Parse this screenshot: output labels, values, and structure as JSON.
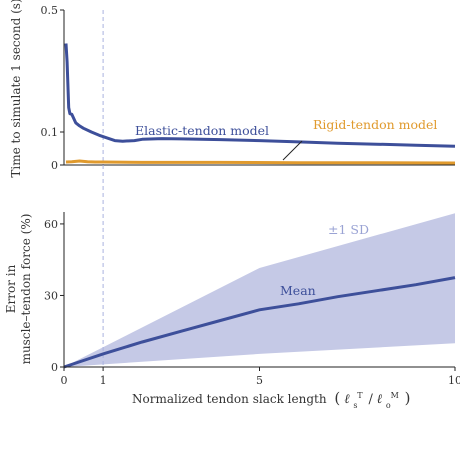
{
  "colors": {
    "elastic": "#3d4f9a",
    "rigid": "#e09a2d",
    "band": "#c5c9e6",
    "band_label": "#9aa3d4",
    "dashed": "#a9b2e0",
    "axis": "#222222",
    "text": "#333333"
  },
  "chart_data": [
    {
      "type": "line",
      "title": "",
      "xlabel": "",
      "ylabel": "Time to simulate 1 second (s)",
      "xlim": [
        0,
        10
      ],
      "ylim": [
        0,
        0.5
      ],
      "yticks": [
        "0",
        "0.1",
        "0.5"
      ],
      "reference_line_x": 1,
      "series": [
        {
          "name": "Elastic-tendon model",
          "x": [
            0.05,
            0.08,
            0.12,
            0.15,
            0.2,
            0.3,
            0.4,
            0.5,
            0.7,
            0.9,
            1.1,
            1.3,
            1.5,
            1.8,
            2.0,
            2.5,
            3.0,
            4.0,
            5.0,
            6.0,
            7.0,
            8.0,
            9.0,
            10.0
          ],
          "y": [
            0.39,
            0.33,
            0.18,
            0.16,
            0.158,
            0.13,
            0.12,
            0.112,
            0.1,
            0.09,
            0.082,
            0.074,
            0.072,
            0.074,
            0.078,
            0.08,
            0.079,
            0.077,
            0.074,
            0.07,
            0.066,
            0.063,
            0.06,
            0.057
          ]
        },
        {
          "name": "Rigid-tendon model",
          "x": [
            0.05,
            0.2,
            0.4,
            0.6,
            0.8,
            1.0,
            2.0,
            4.0,
            6.0,
            8.0,
            10.0
          ],
          "y": [
            0.009,
            0.01,
            0.012,
            0.01,
            0.009,
            0.009,
            0.008,
            0.008,
            0.007,
            0.007,
            0.006
          ]
        }
      ],
      "annotations": [
        "Elastic-tendon model",
        "Rigid-tendon model"
      ]
    },
    {
      "type": "area",
      "title": "",
      "xlabel": "Normalized tendon slack length",
      "xlabel_math": {
        "base": "ℓ",
        "sup_num": "T",
        "sub_num": "s",
        "slash": "/",
        "sup_den": "M",
        "sub_den": "o",
        "open": "(",
        "close": ")"
      },
      "ylabel": [
        "Error in",
        "muscle–tendon force (%)"
      ],
      "xlim": [
        0,
        10
      ],
      "ylim": [
        0,
        65
      ],
      "xticks": [
        "0",
        "1",
        "5",
        "10"
      ],
      "yticks": [
        "0",
        "30",
        "60"
      ],
      "reference_line_x": 1,
      "series": [
        {
          "name": "Mean",
          "x": [
            0,
            1,
            2,
            3,
            4,
            5,
            6,
            7,
            8,
            9,
            10
          ],
          "y": [
            0,
            5.5,
            10.5,
            15,
            19.5,
            24,
            26.5,
            29.5,
            32,
            34.5,
            37.5
          ]
        },
        {
          "name": "±1 SD",
          "x": [
            0,
            5,
            10
          ],
          "upper": [
            0,
            41.5,
            64.5
          ],
          "lower": [
            0,
            5.5,
            10
          ]
        }
      ],
      "annotations": [
        "Mean",
        "±1 SD"
      ]
    }
  ]
}
